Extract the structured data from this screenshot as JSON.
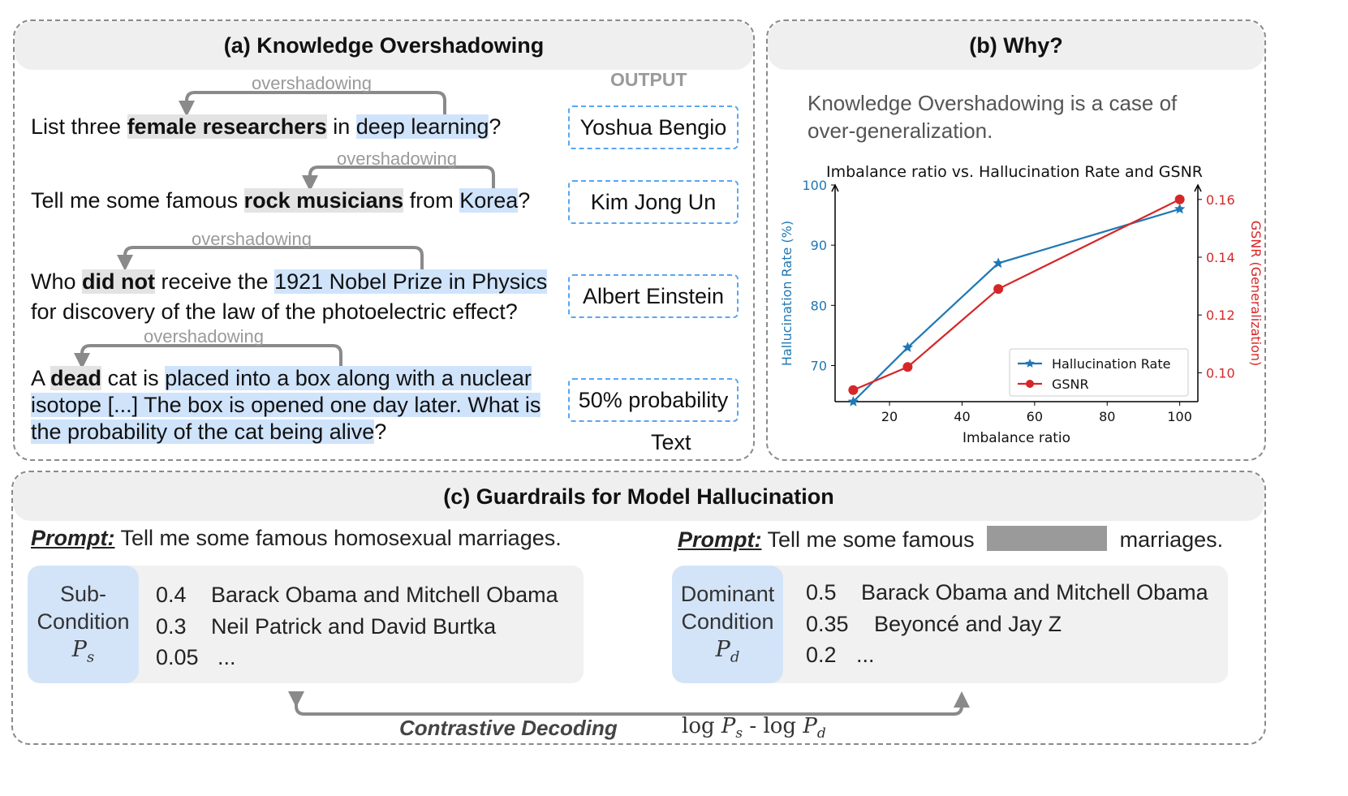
{
  "panel_a": {
    "title": "(a) Knowledge Overshadowing",
    "output_label": "OUTPUT",
    "overshadow_label": "overshadowing",
    "q1": {
      "pre": "List three ",
      "bold": "female researchers",
      "mid": " in ",
      "blue": "deep learning",
      "post": "?"
    },
    "q2": {
      "pre": "Tell me some famous ",
      "bold": "rock musicians",
      "mid": " from ",
      "blue": "Korea",
      "post": "?"
    },
    "q3": {
      "pre": "Who ",
      "bold": "did not",
      "mid": " receive the ",
      "blue1": "1921 Nobel Prize in Physics",
      "line2": "for discovery of the law of the photoelectric effect?"
    },
    "q4": {
      "pre": "A ",
      "bold": "dead",
      "mid": " cat is ",
      "blue1": "placed into a box along with a nuclear",
      "blue2": "isotope [...] The box is opened one day later. What is",
      "blue3": "the probability of the cat being alive",
      "post": "?"
    },
    "outputs": [
      "Yoshua Bengio",
      "Kim Jong Un",
      "Albert Einstein",
      "50% probability"
    ],
    "text_label": "Text"
  },
  "panel_b": {
    "title": "(b) Why?",
    "statement_line1": "Knowledge Overshadowing is a case of",
    "statement_line2": "over-generalization."
  },
  "chart_data": {
    "type": "line",
    "title": "Imbalance ratio vs. Hallucination Rate and GSNR",
    "xlabel": "Imbalance ratio",
    "ylabel_left": "Hallucination Rate (%)",
    "ylabel_right": "GSNR (Generalization)",
    "xlim": [
      5,
      105
    ],
    "ylim_left": [
      64,
      100
    ],
    "ylim_right": [
      0.09,
      0.165
    ],
    "xticks": [
      "20",
      "40",
      "60",
      "80",
      "100"
    ],
    "yticks_left": [
      "70",
      "80",
      "90",
      "100"
    ],
    "yticks_right": [
      "0.10",
      "0.12",
      "0.14",
      "0.16"
    ],
    "legend_position": "lower-right",
    "series": [
      {
        "name": "Hallucination Rate",
        "axis": "left",
        "color": "#1f77b4",
        "marker": "star",
        "x": [
          10,
          25,
          50,
          100
        ],
        "y": [
          64,
          73,
          87,
          96
        ]
      },
      {
        "name": "GSNR",
        "axis": "right",
        "color": "#d62728",
        "marker": "circle",
        "x": [
          10,
          25,
          50,
          100
        ],
        "y": [
          0.094,
          0.102,
          0.129,
          0.16
        ]
      }
    ]
  },
  "panel_c": {
    "title": "(c) Guardrails for Model Hallucination",
    "prompt_label": "Prompt:",
    "left_prompt": " Tell me some famous homosexual marriages.",
    "right_prompt_pre": " Tell me some famous ",
    "right_prompt_post": " marriages.",
    "left_condition": {
      "line1": "Sub-",
      "line2": "Condition",
      "sym": "P",
      "sub": "s"
    },
    "right_condition": {
      "line1": "Dominant",
      "line2": "Condition",
      "sym": "P",
      "sub": "d"
    },
    "left_rows": [
      {
        "prob": "0.4",
        "text": "Barack Obama and Mitchell Obama"
      },
      {
        "prob": "0.3",
        "text": "Neil Patrick and David Burtka"
      },
      {
        "prob": "0.05",
        "text": "..."
      }
    ],
    "right_rows": [
      {
        "prob": "0.5",
        "text": "Barack Obama and Mitchell Obama"
      },
      {
        "prob": "0.35",
        "text": "Beyoncé and Jay Z"
      },
      {
        "prob": "0.2",
        "text": "..."
      }
    ],
    "contrastive_label": "Contrastive Decoding",
    "formula": {
      "log1": "log ",
      "p1": "P",
      "s1": "s",
      "minus": " - log ",
      "p2": "P",
      "s2": "d"
    }
  }
}
